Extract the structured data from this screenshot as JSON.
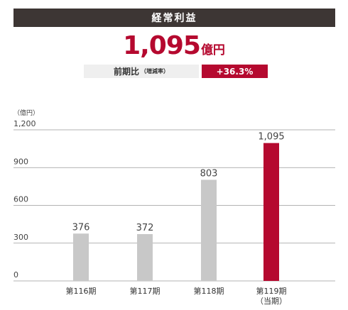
{
  "header": {
    "title": "経常利益"
  },
  "headline": {
    "value": "1,095",
    "unit": "億円"
  },
  "comparison": {
    "label": "前期比",
    "sublabel": "（増減率）",
    "value": "+36.3%"
  },
  "colors": {
    "header_bg": "#3d3634",
    "accent": "#b5092f",
    "bar_gray": "#c8c8c8",
    "grid": "#9a9a9a"
  },
  "chart_data": {
    "type": "bar",
    "unit_label": "（億円）",
    "categories": [
      "第116期",
      "第117期",
      "第118期",
      "第119期"
    ],
    "category_sublabels": [
      "",
      "",
      "",
      "（当期）"
    ],
    "values": [
      376,
      372,
      803,
      1095
    ],
    "value_labels": [
      "376",
      "372",
      "803",
      "1,095"
    ],
    "highlight_index": 3,
    "ylim": [
      0,
      1200
    ],
    "yticks": [
      0,
      300,
      600,
      900,
      1200
    ],
    "ytick_labels": [
      "0",
      "300",
      "600",
      "900",
      "1,200"
    ],
    "grid": true
  }
}
